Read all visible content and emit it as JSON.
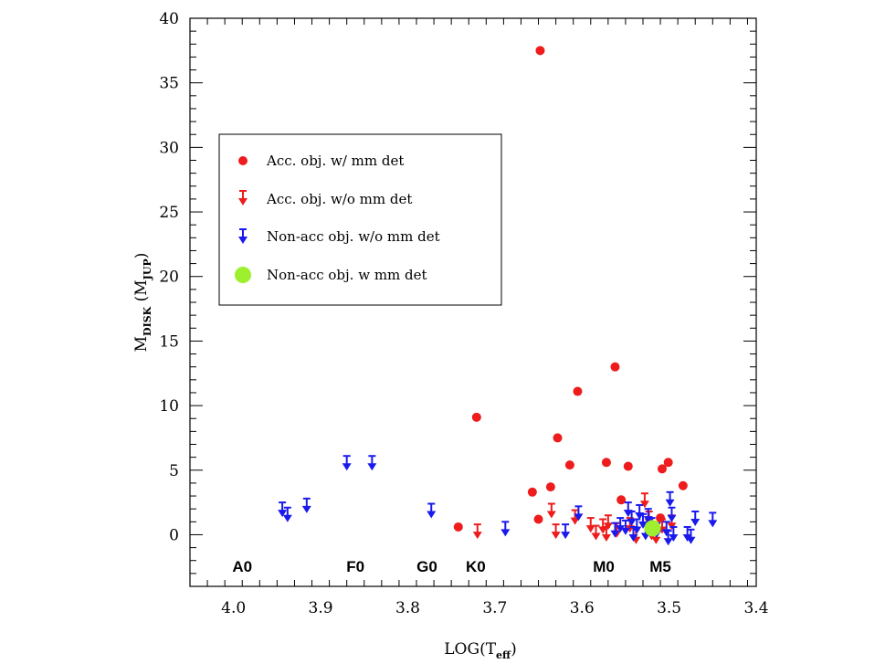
{
  "chart_data": {
    "type": "scatter",
    "title": "",
    "xlabel": {
      "base": "LOG(T",
      "sub": "eff",
      "close": ")"
    },
    "ylabel": {
      "base": "M",
      "sub1": "DISK",
      "mid": " (M",
      "sub2": "JUP",
      "close": ")"
    },
    "xlim": [
      4.05,
      3.4
    ],
    "ylim": [
      -4,
      40
    ],
    "x_ticks": [
      "4.0",
      "3.9",
      "3.8",
      "3.7",
      "3.6",
      "3.5",
      "3.4"
    ],
    "y_ticks": [
      "0",
      "5",
      "10",
      "15",
      "20",
      "25",
      "30",
      "35",
      "40"
    ],
    "spectral_types": [
      {
        "label": "A0",
        "x": 3.99
      },
      {
        "label": "F0",
        "x": 3.86
      },
      {
        "label": "G0",
        "x": 3.778
      },
      {
        "label": "K0",
        "x": 3.722
      },
      {
        "label": "M0",
        "x": 3.575
      },
      {
        "label": "M5",
        "x": 3.51
      }
    ],
    "legend": [
      {
        "label": "Acc. obj. w/ mm det",
        "marker": "dot",
        "color": "#ee1c1c"
      },
      {
        "label": "Acc. obj. w/o mm det",
        "marker": "arrow",
        "color": "#ee1c1c"
      },
      {
        "label": "Non-acc obj. w/o mm det",
        "marker": "arrow",
        "color": "#1a1aee"
      },
      {
        "label": "Non-acc obj. w mm det",
        "marker": "big-dot",
        "color": "#9ef02e"
      }
    ],
    "series": [
      {
        "name": "Acc. obj. w/ mm det",
        "marker": "dot",
        "color": "#ee1c1c",
        "points": [
          {
            "x": 3.648,
            "y": 37.5
          },
          {
            "x": 3.562,
            "y": 13.0
          },
          {
            "x": 3.605,
            "y": 11.1
          },
          {
            "x": 3.721,
            "y": 9.1
          },
          {
            "x": 3.628,
            "y": 7.5
          },
          {
            "x": 3.572,
            "y": 5.6
          },
          {
            "x": 3.501,
            "y": 5.6
          },
          {
            "x": 3.614,
            "y": 5.4
          },
          {
            "x": 3.547,
            "y": 5.3
          },
          {
            "x": 3.508,
            "y": 5.1
          },
          {
            "x": 3.484,
            "y": 3.8
          },
          {
            "x": 3.636,
            "y": 3.7
          },
          {
            "x": 3.657,
            "y": 3.3
          },
          {
            "x": 3.555,
            "y": 2.7
          },
          {
            "x": 3.51,
            "y": 1.3
          },
          {
            "x": 3.65,
            "y": 1.2
          },
          {
            "x": 3.742,
            "y": 0.6
          }
        ]
      },
      {
        "name": "Acc. obj. w/o mm det",
        "marker": "arrow",
        "color": "#ee1c1c",
        "points": [
          {
            "x": 3.72,
            "y": 0.8
          },
          {
            "x": 3.635,
            "y": 2.4
          },
          {
            "x": 3.63,
            "y": 0.8
          },
          {
            "x": 3.608,
            "y": 1.9
          },
          {
            "x": 3.59,
            "y": 1.3
          },
          {
            "x": 3.584,
            "y": 0.7
          },
          {
            "x": 3.576,
            "y": 1.2
          },
          {
            "x": 3.572,
            "y": 0.6
          },
          {
            "x": 3.57,
            "y": 1.5
          },
          {
            "x": 3.56,
            "y": 0.9
          },
          {
            "x": 3.545,
            "y": 1.3
          },
          {
            "x": 3.538,
            "y": 0.4
          },
          {
            "x": 3.528,
            "y": 3.2
          },
          {
            "x": 3.523,
            "y": 1.8
          },
          {
            "x": 3.52,
            "y": 0.7
          },
          {
            "x": 3.515,
            "y": 0.4
          },
          {
            "x": 3.508,
            "y": 1.2
          },
          {
            "x": 3.497,
            "y": 1.5
          }
        ]
      },
      {
        "name": "Non-acc obj. w/o mm det",
        "marker": "arrow",
        "color": "#1a1aee",
        "points": [
          {
            "x": 3.944,
            "y": 2.5
          },
          {
            "x": 3.938,
            "y": 2.1
          },
          {
            "x": 3.916,
            "y": 2.8
          },
          {
            "x": 3.87,
            "y": 6.1
          },
          {
            "x": 3.841,
            "y": 6.1
          },
          {
            "x": 3.773,
            "y": 2.4
          },
          {
            "x": 3.688,
            "y": 1.0
          },
          {
            "x": 3.619,
            "y": 0.8
          },
          {
            "x": 3.604,
            "y": 2.2
          },
          {
            "x": 3.562,
            "y": 0.9
          },
          {
            "x": 3.556,
            "y": 1.3
          },
          {
            "x": 3.55,
            "y": 1.1
          },
          {
            "x": 3.547,
            "y": 2.5
          },
          {
            "x": 3.543,
            "y": 1.8
          },
          {
            "x": 3.541,
            "y": 0.6
          },
          {
            "x": 3.537,
            "y": 1.2
          },
          {
            "x": 3.534,
            "y": 2.3
          },
          {
            "x": 3.53,
            "y": 1.6
          },
          {
            "x": 3.527,
            "y": 0.7
          },
          {
            "x": 3.524,
            "y": 2.0
          },
          {
            "x": 3.52,
            "y": 1.3
          },
          {
            "x": 3.514,
            "y": 0.9
          },
          {
            "x": 3.503,
            "y": 1.0
          },
          {
            "x": 3.501,
            "y": 0.3
          },
          {
            "x": 3.499,
            "y": 3.3
          },
          {
            "x": 3.497,
            "y": 2.1
          },
          {
            "x": 3.495,
            "y": 0.6
          },
          {
            "x": 3.479,
            "y": 0.6
          },
          {
            "x": 3.475,
            "y": 0.4
          },
          {
            "x": 3.47,
            "y": 1.8
          },
          {
            "x": 3.45,
            "y": 1.7
          }
        ]
      },
      {
        "name": "Non-acc obj. w mm det",
        "marker": "big-dot",
        "color": "#9ef02e",
        "points": [
          {
            "x": 3.519,
            "y": 0.5
          }
        ]
      }
    ]
  }
}
